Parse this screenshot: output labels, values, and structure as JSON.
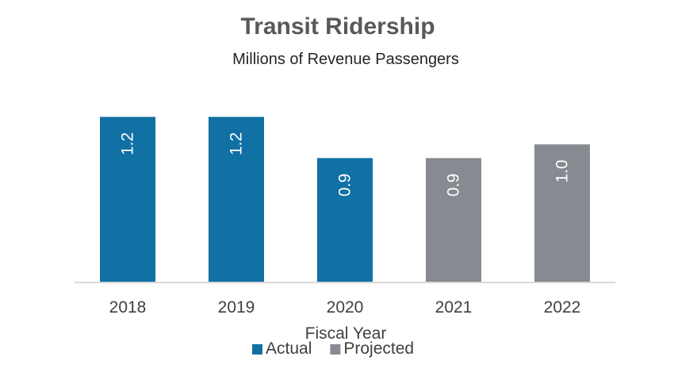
{
  "chart_data": {
    "type": "bar",
    "title": "Transit Ridership",
    "subtitle": "Millions of Revenue Passengers",
    "xlabel": "Fiscal Year",
    "ylabel": "",
    "categories": [
      "2018",
      "2019",
      "2020",
      "2021",
      "2022"
    ],
    "values": [
      1.2,
      1.2,
      0.9,
      0.9,
      1.0
    ],
    "data_labels": [
      "1.2",
      "1.2",
      "0.9",
      "0.9",
      "1.0"
    ],
    "bar_series": [
      "Actual",
      "Actual",
      "Actual",
      "Projected",
      "Projected"
    ],
    "series": [
      {
        "name": "Actual",
        "color": "#1170A4"
      },
      {
        "name": "Projected",
        "color": "#878B91"
      }
    ],
    "ylim": [
      0,
      1.25
    ],
    "grid": false,
    "legend_position": "bottom"
  }
}
